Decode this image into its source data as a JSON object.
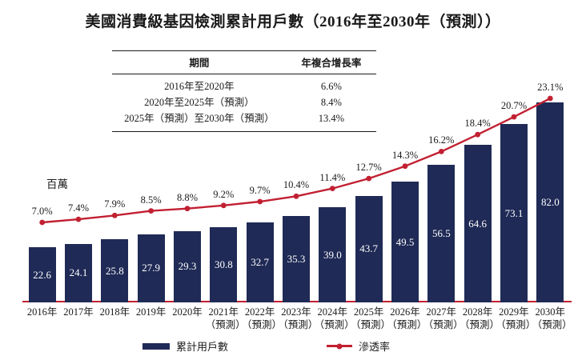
{
  "title": "美國消費級基因檢測累計用戶數（2016年至2030年（預測））",
  "table": {
    "headers": [
      "期間",
      "年複合增長率"
    ],
    "rows": [
      [
        "2016年至2020年",
        "6.6%"
      ],
      [
        "2020年至2025年（預測）",
        "8.4%"
      ],
      [
        "2025年（預測）至2030年（預測）",
        "13.4%"
      ]
    ]
  },
  "chart_data": {
    "type": "bar+line",
    "title": "美國消費級基因檢測累計用戶數（2016年至2030年（預測））",
    "unit_label": "百萬",
    "categories": [
      "2016年",
      "2017年",
      "2018年",
      "2019年",
      "2020年",
      "2021年",
      "2022年",
      "2023年",
      "2024年",
      "2025年",
      "2026年",
      "2027年",
      "2028年",
      "2029年",
      "2030年"
    ],
    "forecast_suffix": "（預測）",
    "forecast_from_index": 5,
    "series": [
      {
        "name": "累計用戶數",
        "type": "bar",
        "values": [
          22.6,
          24.1,
          25.8,
          27.9,
          29.3,
          30.8,
          32.7,
          35.3,
          39.0,
          43.7,
          49.5,
          56.5,
          64.6,
          73.1,
          82.0
        ]
      },
      {
        "name": "滲透率",
        "type": "line",
        "value_format": "percent",
        "values": [
          7.0,
          7.4,
          7.9,
          8.5,
          8.8,
          9.2,
          9.7,
          10.4,
          11.4,
          12.7,
          14.3,
          16.2,
          18.4,
          20.7,
          23.1
        ]
      }
    ],
    "ylabel": "百萬",
    "legend_position": "bottom",
    "grid": false
  },
  "legend": {
    "bar_label": "累計用戶數",
    "line_label": "滲透率"
  },
  "colors": {
    "bar_navy": "#1F2A56",
    "line_red": "#C22032",
    "text": "#1A1A1A"
  }
}
